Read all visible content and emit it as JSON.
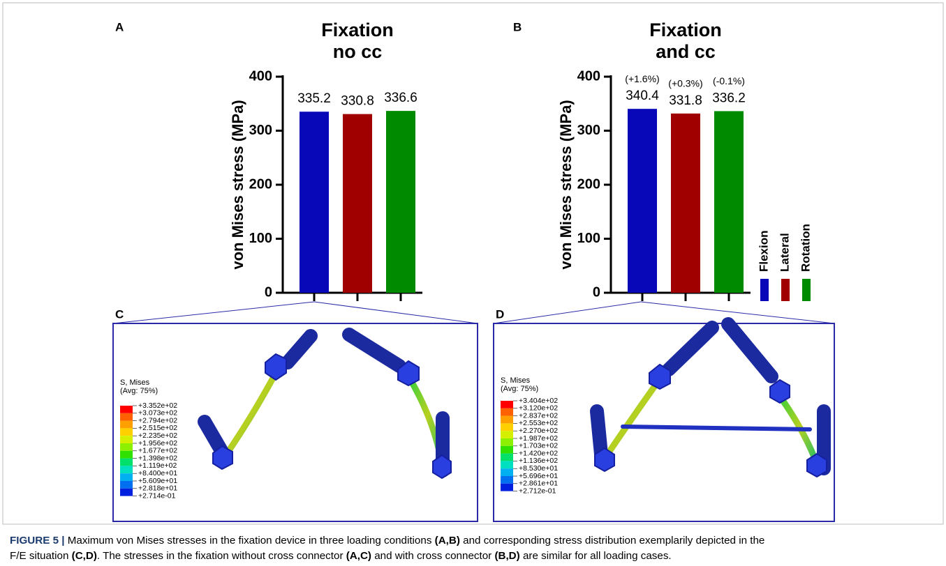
{
  "chart_data": [
    {
      "type": "bar",
      "panel": "A",
      "title": [
        "Fixation",
        "no cc"
      ],
      "ylabel": "von  Mises stress (MPa)",
      "categories": [
        null,
        null,
        null
      ],
      "values": [
        335.2,
        330.8,
        336.6
      ],
      "colors": [
        "#0808b8",
        "#a00000",
        "#008a00"
      ],
      "ylim": [
        0,
        400
      ],
      "yticks": [
        0,
        100,
        200,
        300,
        400
      ],
      "legend": false
    },
    {
      "type": "bar",
      "panel": "B",
      "title": [
        "Fixation",
        "and cc"
      ],
      "ylabel": "von  Mises stress (MPa)",
      "categories": [
        "Flexion",
        "Lateral",
        "Rotation"
      ],
      "values": [
        340.4,
        331.8,
        336.2
      ],
      "annotations": [
        "(+1.6%)",
        "(+0.3%)",
        "(-0.1%)"
      ],
      "colors": [
        "#0808b8",
        "#a00000",
        "#008a00"
      ],
      "ylim": [
        0,
        400
      ],
      "yticks": [
        0,
        100,
        200,
        300,
        400
      ],
      "legend": true
    }
  ],
  "panels": [
    {
      "label": "C",
      "contour_title": [
        "S, Mises",
        "(Avg: 75%)"
      ],
      "contour_labels": [
        "+3.352e+02",
        "+3.073e+02",
        "+2.794e+02",
        "+2.515e+02",
        "+2.235e+02",
        "+1.956e+02",
        "+1.677e+02",
        "+1.398e+02",
        "+1.119e+02",
        "+8.400e+01",
        "+5.609e+01",
        "+2.818e+01",
        "+2.714e-01"
      ]
    },
    {
      "label": "D",
      "contour_title": [
        "S, Mises",
        "(Avg: 75%)"
      ],
      "contour_labels": [
        "+3.404e+02",
        "+3.120e+02",
        "+2.837e+02",
        "+2.553e+02",
        "+2.270e+02",
        "+1.987e+02",
        "+1.703e+02",
        "+1.420e+02",
        "+1.136e+02",
        "+8.530e+01",
        "+5.696e+01",
        "+2.861e+01",
        "+2.712e-01"
      ]
    }
  ],
  "caption": {
    "lines": [
      [
        {
          "text": "FIGURE 5 |",
          "bold": true
        },
        {
          "text": " Maximum von Mises stresses in the fixation device in three loading conditions ",
          "bold": false
        },
        {
          "text": "(A,B)",
          "bold": true
        },
        {
          "text": " and corresponding stress distribution exemplarily depicted in the",
          "bold": false
        }
      ],
      [
        {
          "text": "F/E situation ",
          "bold": false
        },
        {
          "text": "(C,D)",
          "bold": true
        },
        {
          "text": ". The stresses in the fixation without cross connector ",
          "bold": false
        },
        {
          "text": "(A,C)",
          "bold": true
        },
        {
          "text": " and with cross connector ",
          "bold": false
        },
        {
          "text": "(B,D)",
          "bold": true
        },
        {
          "text": " are similar for all loading cases.",
          "bold": false
        }
      ]
    ]
  }
}
